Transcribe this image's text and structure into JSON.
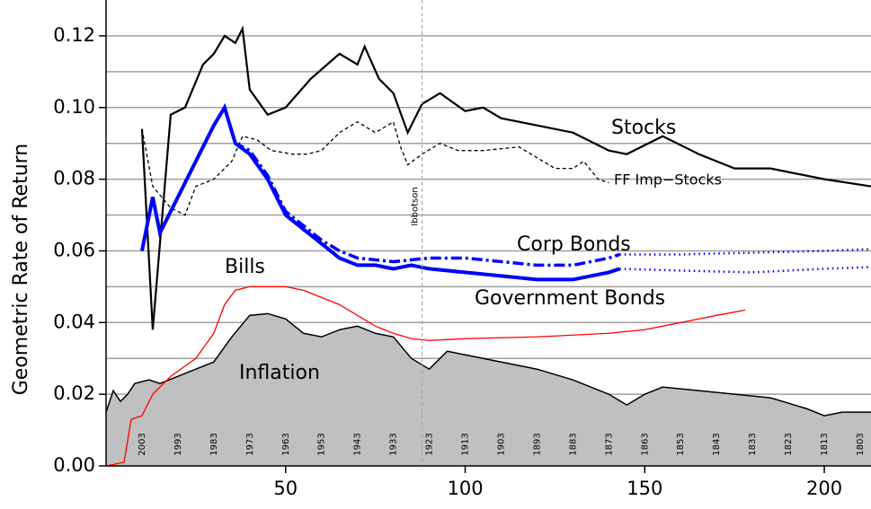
{
  "chart_data": {
    "type": "line",
    "y_label": "Geometric Rate of Return",
    "xlim": [
      0,
      213
    ],
    "ylim": [
      0,
      0.13
    ],
    "xticks": [
      50,
      100,
      150,
      200
    ],
    "yticks": [
      {
        "value": 0,
        "label": "0.00"
      },
      {
        "value": 0.02,
        "label": "0.02"
      },
      {
        "value": 0.04,
        "label": "0.04"
      },
      {
        "value": 0.06,
        "label": "0.06"
      },
      {
        "value": 0.08,
        "label": "0.08"
      },
      {
        "value": 0.1,
        "label": "0.10"
      },
      {
        "value": 0.12,
        "label": "0.12"
      }
    ],
    "ygrid": [
      0.01,
      0.02,
      0.03,
      0.04,
      0.05,
      0.06,
      0.07,
      0.08,
      0.09,
      0.1,
      0.11,
      0.12
    ],
    "ref_line": {
      "x": 88,
      "label": "Ibbotson"
    },
    "year_labels": {
      "x": [
        10,
        20,
        30,
        40,
        50,
        60,
        70,
        80,
        90,
        100,
        110,
        120,
        130,
        140,
        150,
        160,
        170,
        180,
        190,
        200,
        210
      ],
      "labels": [
        "2003",
        "1993",
        "1983",
        "1973",
        "1963",
        "1953",
        "1943",
        "1933",
        "1923",
        "1913",
        "1903",
        "1893",
        "1883",
        "1873",
        "1863",
        "1853",
        "1843",
        "1833",
        "1823",
        "1813",
        "1803"
      ]
    },
    "series": [
      {
        "name": "Inflation",
        "style": "area",
        "color": "#000000",
        "fill": "#c0c0c0",
        "x": [
          0,
          2,
          4,
          6,
          8,
          12,
          15,
          20,
          25,
          30,
          35,
          40,
          45,
          50,
          55,
          60,
          65,
          70,
          75,
          80,
          85,
          90,
          95,
          100,
          110,
          120,
          130,
          140,
          145,
          150,
          155,
          165,
          175,
          185,
          195,
          200,
          205,
          213
        ],
        "values": [
          0.015,
          0.021,
          0.018,
          0.02,
          0.023,
          0.024,
          0.023,
          0.025,
          0.027,
          0.029,
          0.036,
          0.042,
          0.0425,
          0.041,
          0.037,
          0.036,
          0.038,
          0.039,
          0.037,
          0.036,
          0.03,
          0.027,
          0.032,
          0.031,
          0.029,
          0.027,
          0.024,
          0.02,
          0.017,
          0.02,
          0.022,
          0.021,
          0.02,
          0.019,
          0.016,
          0.014,
          0.015,
          0.015
        ]
      },
      {
        "name": "Bills",
        "style": "solid",
        "color": "#ff0000",
        "x": [
          0,
          5,
          7,
          10,
          13,
          18,
          25,
          30,
          33,
          36,
          40,
          45,
          50,
          55,
          60,
          65,
          70,
          75,
          80,
          85,
          90,
          100,
          120,
          140,
          150,
          160,
          170,
          178
        ],
        "values": [
          0,
          0.001,
          0.013,
          0.014,
          0.02,
          0.025,
          0.03,
          0.037,
          0.045,
          0.049,
          0.05,
          0.05,
          0.05,
          0.049,
          0.047,
          0.045,
          0.042,
          0.039,
          0.037,
          0.0355,
          0.035,
          0.0355,
          0.036,
          0.037,
          0.038,
          0.04,
          0.042,
          0.0435
        ]
      },
      {
        "name": "Stocks",
        "style": "solid",
        "color": "#000000",
        "x": [
          10,
          13,
          18,
          22,
          27,
          30,
          33,
          36,
          38,
          40,
          45,
          50,
          57,
          65,
          70,
          72,
          76,
          80,
          84,
          88,
          93,
          100,
          105,
          110,
          120,
          130,
          140,
          145,
          155,
          165,
          175,
          185,
          200,
          213
        ],
        "values": [
          0.094,
          0.038,
          0.098,
          0.1,
          0.112,
          0.115,
          0.12,
          0.118,
          0.122,
          0.105,
          0.098,
          0.1,
          0.108,
          0.115,
          0.112,
          0.117,
          0.108,
          0.104,
          0.093,
          0.101,
          0.104,
          0.099,
          0.1,
          0.097,
          0.095,
          0.093,
          0.088,
          0.087,
          0.092,
          0.087,
          0.083,
          0.083,
          0.08,
          0.078
        ]
      },
      {
        "name": "FF Imp−Stocks",
        "style": "dashed",
        "color": "#000000",
        "x": [
          10,
          13,
          18,
          22,
          25,
          30,
          35,
          38,
          42,
          46,
          52,
          56,
          60,
          65,
          70,
          75,
          80,
          82,
          84,
          88,
          93,
          98,
          105,
          115,
          120,
          125,
          130,
          133,
          137,
          140
        ],
        "values": [
          0.094,
          0.078,
          0.072,
          0.07,
          0.078,
          0.08,
          0.085,
          0.092,
          0.091,
          0.088,
          0.087,
          0.087,
          0.088,
          0.093,
          0.096,
          0.093,
          0.096,
          0.089,
          0.084,
          0.087,
          0.09,
          0.088,
          0.088,
          0.089,
          0.086,
          0.083,
          0.083,
          0.085,
          0.08,
          0.079
        ]
      },
      {
        "name": "Corp Bonds",
        "style": "dashdot",
        "color": "#0000ff",
        "x": [
          10,
          13,
          15,
          20,
          25,
          30,
          33,
          36,
          40,
          45,
          50,
          55,
          60,
          65,
          70,
          80,
          90,
          100,
          110,
          120,
          130,
          140,
          143
        ],
        "values": [
          0.06,
          0.075,
          0.065,
          0.075,
          0.085,
          0.095,
          0.1,
          0.09,
          0.088,
          0.081,
          0.071,
          0.067,
          0.063,
          0.06,
          0.058,
          0.057,
          0.058,
          0.058,
          0.057,
          0.056,
          0.056,
          0.058,
          0.059
        ],
        "extension": {
          "x": [
            143,
            160,
            180,
            200,
            213
          ],
          "values": [
            0.059,
            0.059,
            0.0595,
            0.06,
            0.0605
          ]
        }
      },
      {
        "name": "Government Bonds",
        "style": "solid",
        "color": "#0000ff",
        "x": [
          10,
          13,
          15,
          20,
          25,
          30,
          33,
          36,
          40,
          45,
          50,
          55,
          60,
          65,
          70,
          75,
          80,
          85,
          90,
          100,
          110,
          120,
          130,
          140,
          143
        ],
        "values": [
          0.06,
          0.075,
          0.065,
          0.075,
          0.085,
          0.095,
          0.1,
          0.09,
          0.087,
          0.08,
          0.07,
          0.066,
          0.062,
          0.058,
          0.056,
          0.056,
          0.055,
          0.056,
          0.055,
          0.054,
          0.053,
          0.052,
          0.052,
          0.054,
          0.055
        ],
        "extension": {
          "x": [
            143,
            160,
            180,
            200,
            213
          ],
          "values": [
            0.055,
            0.0545,
            0.054,
            0.055,
            0.0555
          ]
        }
      }
    ]
  }
}
